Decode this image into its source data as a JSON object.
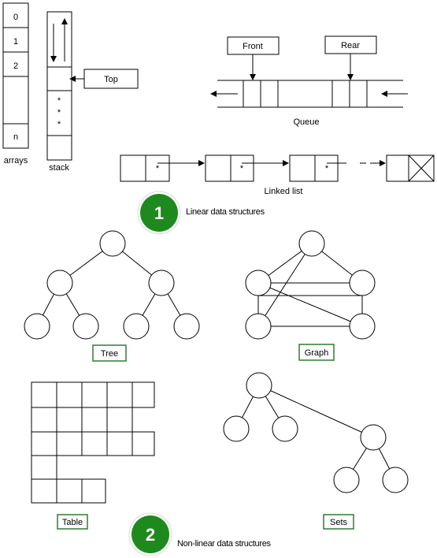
{
  "linear": {
    "arrays": {
      "cells": [
        "0",
        "1",
        "2",
        "",
        "n"
      ],
      "label": "arrays"
    },
    "stack": {
      "label": "stack",
      "top_label": "Top",
      "dots": [
        "*",
        "*",
        "*"
      ]
    },
    "queue": {
      "label": "Queue",
      "front_label": "Front",
      "rear_label": "Rear"
    },
    "linked_list": {
      "label": "Linked list",
      "pointer_mark": "*"
    },
    "badge_number": "1",
    "caption": "Linear data structures"
  },
  "nonlinear": {
    "tree_label": "Tree",
    "graph_label": "Graph",
    "table_label": "Table",
    "sets_label": "Sets",
    "badge_number": "2",
    "caption": "Non-linear data structures"
  },
  "colors": {
    "badge_fill": "#1e8a1e",
    "label_border": "#2e7d32",
    "line": "#000000"
  }
}
